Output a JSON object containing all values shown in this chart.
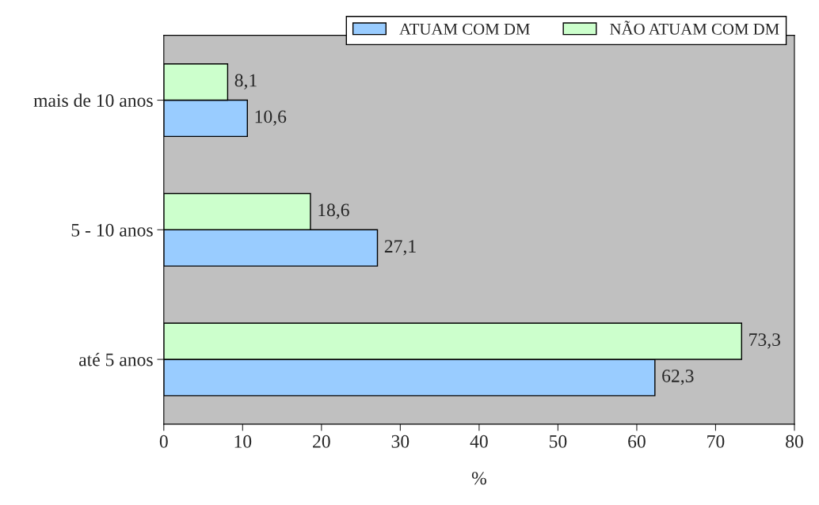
{
  "chart_data": {
    "type": "bar",
    "orientation": "horizontal",
    "xlabel": "%",
    "categories": [
      "mais de 10 anos",
      "5 - 10 anos",
      "até 5 anos"
    ],
    "series": [
      {
        "name": "ATUAM COM DM",
        "color": "#99ccff",
        "values": [
          10.6,
          27.1,
          62.3
        ],
        "value_labels": [
          "10,6",
          "27,1",
          "62,3"
        ]
      },
      {
        "name": "NÃO ATUAM COM DM",
        "color": "#ccffcc",
        "values": [
          8.1,
          18.6,
          73.3
        ],
        "value_labels": [
          "8,1",
          "18,6",
          "73,3"
        ]
      }
    ],
    "xlim": [
      0,
      80
    ],
    "xticks": [
      0,
      10,
      20,
      30,
      40,
      50,
      60,
      70,
      80
    ],
    "legend": "top right"
  }
}
